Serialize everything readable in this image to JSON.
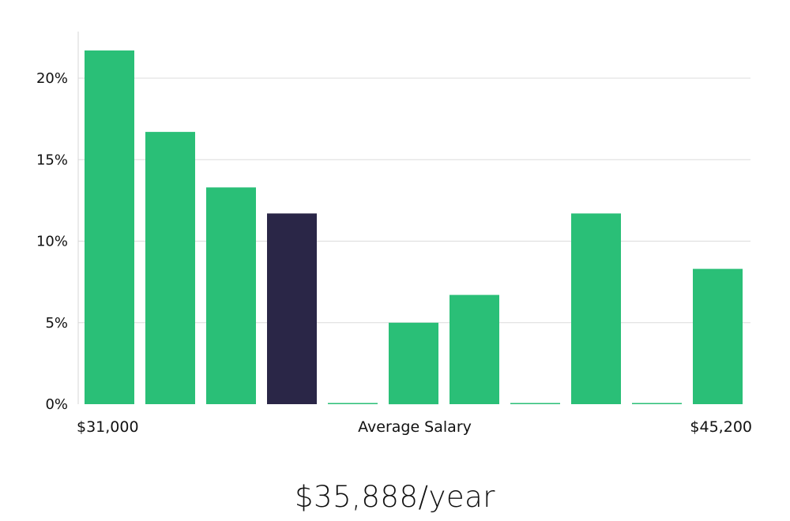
{
  "chart_data": {
    "type": "bar",
    "xlabel": "Average Salary",
    "x_range_labels": [
      "$31,000",
      "$45,200"
    ],
    "yticks": [
      "0%",
      "5%",
      "10%",
      "15%",
      "20%"
    ],
    "ylim": [
      0,
      22.9
    ],
    "grid": true,
    "categories": [
      "1",
      "2",
      "3",
      "4",
      "5",
      "6",
      "7",
      "8",
      "9",
      "10",
      "11"
    ],
    "values": [
      21.7,
      16.7,
      13.3,
      11.7,
      0,
      5.0,
      6.7,
      0,
      11.7,
      0,
      8.3
    ],
    "highlight_index": 3,
    "colors": {
      "bar": "#2abf77",
      "highlight": "#2a2647",
      "grid": "#dcdcdc",
      "axis": "#d6d6d6"
    }
  },
  "headline": "$35,888/year"
}
